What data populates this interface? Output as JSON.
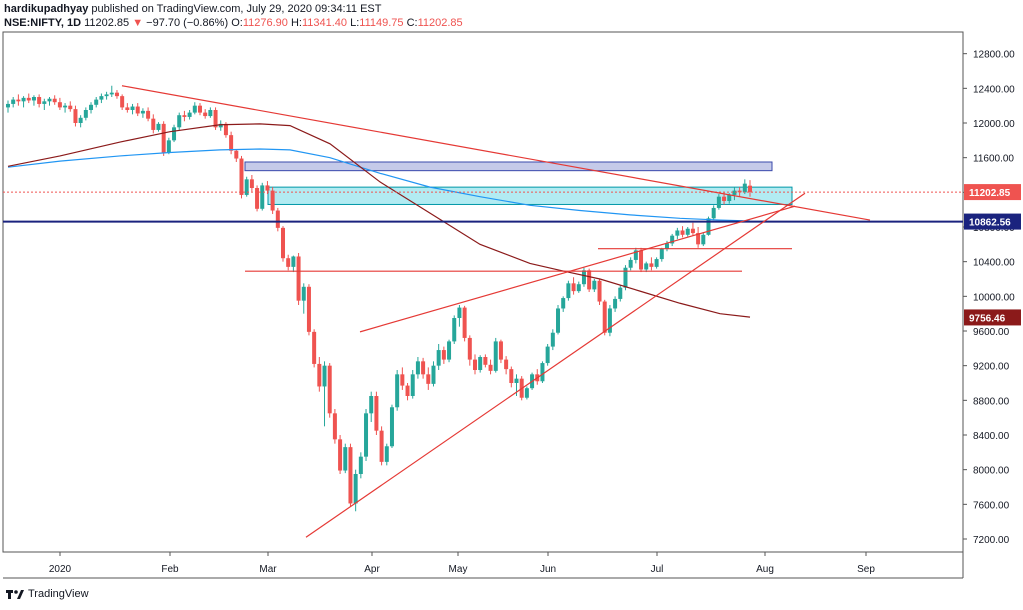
{
  "header": {
    "author": "hardikupadhyay",
    "published": "published on TradingView.com, July 29, 2020 09:34:11 EST",
    "symbol": "NSE:NIFTY, 1D",
    "last": "11202.85",
    "change_arrow": "▼",
    "change": "−97.70 (−0.86%)",
    "o_label": "O:",
    "o_value": "11276.90",
    "h_label": "H:",
    "h_value": "11341.40",
    "l_label": "L:",
    "l_value": "11149.75",
    "c_label": "C:",
    "c_value": "11202.85"
  },
  "footer": {
    "brand": "TradingView",
    "logo_icon": "tradingview-logo-icon"
  },
  "colors": {
    "up": "#26a69a",
    "down": "#ef5350",
    "trend": "#e53935",
    "ma_long": "#8b1a1a",
    "ma_blue": "#2196f3",
    "support_line": "#1a237e",
    "zone_purple": "#c5cae9",
    "zone_cyan": "#b2ebf2"
  },
  "chart_data": {
    "type": "candlestick",
    "title": "",
    "ylim": [
      7050,
      13050
    ],
    "y_ticks": [
      "12800.00",
      "12400.00",
      "12000.00",
      "11600.00",
      "11200.00",
      "10800.00",
      "10400.00",
      "10000.00",
      "9600.00",
      "9200.00",
      "8800.00",
      "8400.00",
      "8000.00",
      "7600.00",
      "7200.00"
    ],
    "x_ticks": [
      "2020",
      "Feb",
      "Mar",
      "Apr",
      "May",
      "Jun",
      "Jul",
      "Aug",
      "Sep"
    ],
    "price_labels": [
      {
        "text": "11202.85",
        "value": 11202.85,
        "color": "#ef5350"
      },
      {
        "text": "10862.56",
        "value": 10862.56,
        "color": "#1a237e"
      },
      {
        "text": "9756.46",
        "value": 9756.46,
        "color": "#8b1a1a"
      }
    ],
    "ohlc_approx": [
      [
        12180,
        12260,
        12120,
        12220
      ],
      [
        12220,
        12300,
        12180,
        12270
      ],
      [
        12270,
        12330,
        12200,
        12250
      ],
      [
        12250,
        12310,
        12180,
        12290
      ],
      [
        12290,
        12340,
        12230,
        12260
      ],
      [
        12260,
        12320,
        12200,
        12300
      ],
      [
        12300,
        12330,
        12180,
        12220
      ],
      [
        12220,
        12280,
        12150,
        12250
      ],
      [
        12250,
        12300,
        12200,
        12280
      ],
      [
        12280,
        12320,
        12210,
        12240
      ],
      [
        12240,
        12290,
        12150,
        12180
      ],
      [
        12180,
        12230,
        12120,
        12200
      ],
      [
        12200,
        12250,
        12130,
        12160
      ],
      [
        12160,
        12200,
        11960,
        12000
      ],
      [
        12000,
        12090,
        11950,
        12060
      ],
      [
        12060,
        12180,
        12030,
        12150
      ],
      [
        12150,
        12240,
        12110,
        12210
      ],
      [
        12210,
        12300,
        12180,
        12270
      ],
      [
        12270,
        12340,
        12230,
        12310
      ],
      [
        12310,
        12360,
        12270,
        12330
      ],
      [
        12330,
        12430,
        12300,
        12350
      ],
      [
        12350,
        12380,
        12280,
        12310
      ],
      [
        12310,
        12330,
        12150,
        12180
      ],
      [
        12180,
        12230,
        12120,
        12150
      ],
      [
        12150,
        12220,
        12100,
        12190
      ],
      [
        12190,
        12230,
        12080,
        12110
      ],
      [
        12110,
        12170,
        12060,
        12140
      ],
      [
        12140,
        12180,
        12020,
        12050
      ],
      [
        12050,
        12100,
        11880,
        11920
      ],
      [
        11920,
        12010,
        11900,
        11990
      ],
      [
        11990,
        12020,
        11620,
        11660
      ],
      [
        11660,
        11830,
        11640,
        11800
      ],
      [
        11800,
        11980,
        11780,
        11950
      ],
      [
        11950,
        12120,
        11920,
        12090
      ],
      [
        12090,
        12140,
        12020,
        12070
      ],
      [
        12070,
        12150,
        12040,
        12120
      ],
      [
        12120,
        12240,
        12100,
        12200
      ],
      [
        12200,
        12230,
        12090,
        12120
      ],
      [
        12120,
        12160,
        12050,
        12080
      ],
      [
        12080,
        12180,
        12060,
        12150
      ],
      [
        12150,
        12180,
        11920,
        11950
      ],
      [
        11950,
        12030,
        11910,
        11990
      ],
      [
        11990,
        12010,
        11830,
        11860
      ],
      [
        11860,
        11900,
        11640,
        11680
      ],
      [
        11680,
        11700,
        11550,
        11590
      ],
      [
        11590,
        11620,
        11130,
        11170
      ],
      [
        11170,
        11380,
        11150,
        11350
      ],
      [
        11350,
        11400,
        11210,
        11250
      ],
      [
        11250,
        11280,
        10980,
        11010
      ],
      [
        11010,
        11310,
        10990,
        11280
      ],
      [
        11280,
        11330,
        11180,
        11220
      ],
      [
        11220,
        11260,
        10950,
        10990
      ],
      [
        10990,
        11020,
        10750,
        10790
      ],
      [
        10790,
        10810,
        10400,
        10440
      ],
      [
        10440,
        10480,
        10300,
        10340
      ],
      [
        10340,
        10470,
        10280,
        10460
      ],
      [
        10460,
        10500,
        9900,
        9950
      ],
      [
        9950,
        10150,
        9800,
        10110
      ],
      [
        10110,
        10140,
        9550,
        9590
      ],
      [
        9590,
        9620,
        9180,
        9220
      ],
      [
        9220,
        9300,
        8900,
        8960
      ],
      [
        8960,
        9250,
        8500,
        9200
      ],
      [
        9200,
        9230,
        8600,
        8650
      ],
      [
        8650,
        8700,
        8300,
        8350
      ],
      [
        8350,
        8400,
        7950,
        7990
      ],
      [
        7990,
        8300,
        7960,
        8260
      ],
      [
        8260,
        8300,
        7580,
        7610
      ],
      [
        7610,
        8000,
        7520,
        7950
      ],
      [
        7950,
        8200,
        7900,
        8150
      ],
      [
        8150,
        8700,
        8100,
        8650
      ],
      [
        8650,
        8900,
        8550,
        8850
      ],
      [
        8850,
        8900,
        8400,
        8450
      ],
      [
        8450,
        8500,
        8050,
        8090
      ],
      [
        8090,
        8300,
        8050,
        8270
      ],
      [
        8270,
        8750,
        8250,
        8720
      ],
      [
        8720,
        9150,
        8680,
        9100
      ],
      [
        9100,
        9180,
        8920,
        8970
      ],
      [
        8970,
        9000,
        8800,
        8850
      ],
      [
        8850,
        9150,
        8820,
        9100
      ],
      [
        9100,
        9300,
        9050,
        9250
      ],
      [
        9250,
        9290,
        9050,
        9100
      ],
      [
        9100,
        9180,
        8920,
        8990
      ],
      [
        8990,
        9250,
        8960,
        9200
      ],
      [
        9200,
        9450,
        9150,
        9380
      ],
      [
        9380,
        9420,
        9220,
        9270
      ],
      [
        9270,
        9500,
        9240,
        9480
      ],
      [
        9480,
        9780,
        9450,
        9750
      ],
      [
        9750,
        9900,
        9650,
        9870
      ],
      [
        9870,
        9890,
        9480,
        9520
      ],
      [
        9520,
        9550,
        9200,
        9270
      ],
      [
        9270,
        9330,
        9100,
        9150
      ],
      [
        9150,
        9320,
        9120,
        9300
      ],
      [
        9300,
        9330,
        9180,
        9210
      ],
      [
        9210,
        9270,
        9100,
        9140
      ],
      [
        9140,
        9520,
        9120,
        9480
      ],
      [
        9480,
        9500,
        9230,
        9270
      ],
      [
        9270,
        9310,
        9100,
        9160
      ],
      [
        9160,
        9190,
        8950,
        9000
      ],
      [
        9000,
        9100,
        8850,
        9050
      ],
      [
        9050,
        9080,
        8800,
        8830
      ],
      [
        8830,
        8960,
        8810,
        8940
      ],
      [
        8940,
        9120,
        8920,
        9100
      ],
      [
        9100,
        9160,
        8980,
        9020
      ],
      [
        9020,
        9250,
        9000,
        9230
      ],
      [
        9230,
        9450,
        9200,
        9420
      ],
      [
        9420,
        9620,
        9380,
        9580
      ],
      [
        9580,
        9900,
        9560,
        9860
      ],
      [
        9860,
        10000,
        9820,
        9980
      ],
      [
        9980,
        10180,
        9950,
        10150
      ],
      [
        10150,
        10220,
        10020,
        10060
      ],
      [
        10060,
        10170,
        10040,
        10140
      ],
      [
        10140,
        10330,
        10110,
        10300
      ],
      [
        10300,
        10320,
        10050,
        10080
      ],
      [
        10080,
        10200,
        10050,
        10180
      ],
      [
        10180,
        10200,
        9900,
        9940
      ],
      [
        9940,
        9960,
        9550,
        9580
      ],
      [
        9580,
        9900,
        9540,
        9860
      ],
      [
        9860,
        10000,
        9820,
        9970
      ],
      [
        9970,
        10130,
        9940,
        10100
      ],
      [
        10100,
        10360,
        10070,
        10330
      ],
      [
        10330,
        10450,
        10300,
        10420
      ],
      [
        10420,
        10560,
        10380,
        10530
      ],
      [
        10530,
        10560,
        10280,
        10310
      ],
      [
        10310,
        10400,
        10280,
        10380
      ],
      [
        10380,
        10450,
        10300,
        10340
      ],
      [
        10340,
        10450,
        10320,
        10430
      ],
      [
        10430,
        10560,
        10400,
        10550
      ],
      [
        10550,
        10640,
        10520,
        10610
      ],
      [
        10610,
        10720,
        10580,
        10700
      ],
      [
        10700,
        10790,
        10660,
        10760
      ],
      [
        10760,
        10810,
        10680,
        10710
      ],
      [
        10710,
        10800,
        10690,
        10780
      ],
      [
        10780,
        10850,
        10700,
        10730
      ],
      [
        10730,
        10800,
        10560,
        10600
      ],
      [
        10600,
        10740,
        10580,
        10710
      ],
      [
        10710,
        10920,
        10700,
        10900
      ],
      [
        10900,
        11050,
        10880,
        11020
      ],
      [
        11020,
        11180,
        11000,
        11150
      ],
      [
        11150,
        11200,
        11060,
        11100
      ],
      [
        11100,
        11190,
        11070,
        11170
      ],
      [
        11170,
        11260,
        11110,
        11220
      ],
      [
        11220,
        11260,
        11150,
        11200
      ],
      [
        11200,
        11350,
        11180,
        11300
      ],
      [
        11276.9,
        11341.4,
        11149.75,
        11202.85
      ]
    ]
  }
}
